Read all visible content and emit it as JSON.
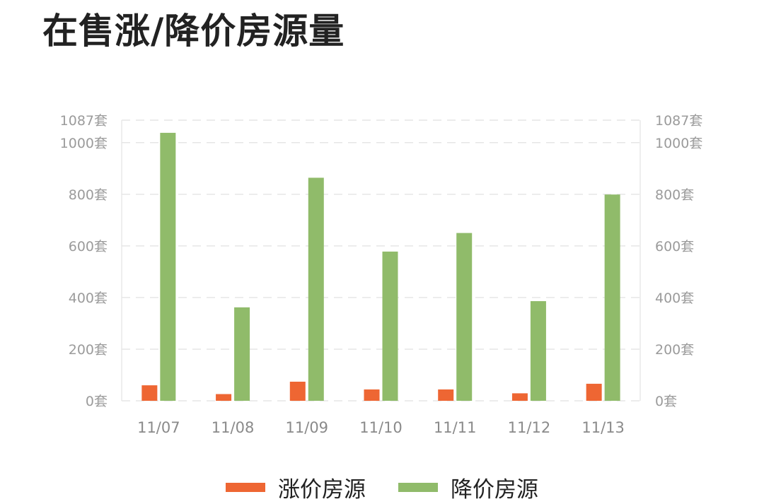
{
  "title": "在售涨/降价房源量",
  "chart_data": {
    "type": "bar",
    "categories": [
      "11/07",
      "11/08",
      "11/09",
      "11/10",
      "11/11",
      "11/12",
      "11/13"
    ],
    "series": [
      {
        "name": "涨价房源",
        "color": "#ee6633",
        "values": [
          60,
          26,
          74,
          44,
          44,
          29,
          66
        ]
      },
      {
        "name": "降价房源",
        "color": "#90bb6a",
        "values": [
          1038,
          362,
          864,
          578,
          650,
          386,
          799
        ]
      }
    ],
    "ylim": [
      0,
      1087
    ],
    "yticks": [
      {
        "value": 0,
        "label": "0套"
      },
      {
        "value": 200,
        "label": "200套"
      },
      {
        "value": 400,
        "label": "400套"
      },
      {
        "value": 600,
        "label": "600套"
      },
      {
        "value": 800,
        "label": "800套"
      },
      {
        "value": 1000,
        "label": "1000套"
      },
      {
        "value": 1087,
        "label": "1087套"
      }
    ],
    "dual_axis_labels": true,
    "grid": true,
    "legend_position": "bottom"
  }
}
